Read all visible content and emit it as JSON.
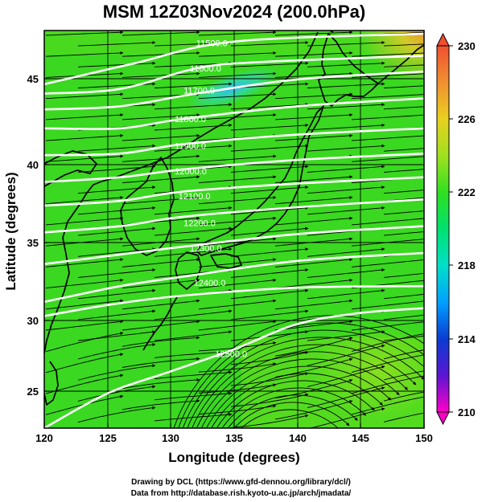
{
  "title": "MSM 12Z03Nov2024 (200.0hPa)",
  "xlabel": "Longitude (degrees)",
  "ylabel": "Latitude  (degrees)",
  "credits": {
    "line1": "Drawing by DCL (https://www.gfd-dennou.org/library/dcl/)",
    "line2": "Data from http://database.rish.kyoto-u.ac.jp/arch/jmadata/"
  },
  "chart_data": {
    "type": "map",
    "x_range": [
      120,
      150
    ],
    "y_range": [
      22.4,
      47.6
    ],
    "x_ticks": [
      120,
      125,
      130,
      135,
      140,
      145,
      150
    ],
    "y_ticks": [
      25,
      30,
      35,
      40,
      45
    ],
    "grid": true,
    "field": "temperature (shaded), geopotential height (white contours), wind (streamlines)",
    "colorbar": {
      "min": 210,
      "max": 230,
      "ticks": [
        230,
        226,
        222,
        218,
        214,
        210
      ],
      "colors": [
        "#ff00c8",
        "#5a16d2",
        "#0a3cd2",
        "#00a0ff",
        "#00e0c8",
        "#00e070",
        "#30e020",
        "#a0e020",
        "#e8d020",
        "#f09030",
        "#f05030"
      ]
    },
    "contours": [
      {
        "label": "11500.0",
        "lat_at_lon": [
          [
            120,
            44.2
          ],
          [
            127,
            45.5
          ],
          [
            135,
            46.9
          ],
          [
            150,
            47.4
          ]
        ]
      },
      {
        "label": "11600.0",
        "lat_at_lon": [
          [
            120,
            43.6
          ],
          [
            126,
            43.9
          ],
          [
            132,
            45.2
          ],
          [
            137,
            45.6
          ],
          [
            150,
            46.0
          ]
        ]
      },
      {
        "label": "11700.0",
        "lat_at_lon": [
          [
            120,
            42.6
          ],
          [
            126,
            42.8
          ],
          [
            132,
            43.6
          ],
          [
            140,
            44.5
          ],
          [
            150,
            45.0
          ]
        ]
      },
      {
        "label": "11800.0",
        "lat_at_lon": [
          [
            120,
            41.4
          ],
          [
            126,
            41.4
          ],
          [
            131,
            42.0
          ],
          [
            140,
            42.8
          ],
          [
            150,
            43.3
          ]
        ]
      },
      {
        "label": "11900.0",
        "lat_at_lon": [
          [
            120,
            39.7
          ],
          [
            126,
            39.8
          ],
          [
            131,
            40.4
          ],
          [
            140,
            41.0
          ],
          [
            150,
            41.4
          ]
        ]
      },
      {
        "label": "12000.0",
        "lat_at_lon": [
          [
            120,
            38.0
          ],
          [
            126,
            38.3
          ],
          [
            131,
            38.8
          ],
          [
            140,
            39.4
          ],
          [
            150,
            39.8
          ]
        ]
      },
      {
        "label": "12100.0",
        "lat_at_lon": [
          [
            120,
            36.5
          ],
          [
            126,
            36.8
          ],
          [
            131,
            37.4
          ],
          [
            140,
            37.9
          ],
          [
            150,
            38.3
          ]
        ]
      },
      {
        "label": "12200.0",
        "lat_at_lon": [
          [
            120,
            34.8
          ],
          [
            126,
            35.2
          ],
          [
            131,
            35.8
          ],
          [
            140,
            36.4
          ],
          [
            150,
            36.9
          ]
        ]
      },
      {
        "label": "12300.0",
        "lat_at_lon": [
          [
            120,
            32.8
          ],
          [
            126,
            33.4
          ],
          [
            131,
            33.9
          ],
          [
            140,
            34.7
          ],
          [
            150,
            35.2
          ]
        ]
      },
      {
        "label": "12400.0",
        "lat_at_lon": [
          [
            120,
            30.4
          ],
          [
            126,
            31.4
          ],
          [
            131,
            32.0
          ],
          [
            140,
            33.0
          ],
          [
            150,
            33.5
          ]
        ]
      },
      {
        "label": "",
        "lat_at_lon": [
          [
            120,
            29.5
          ],
          [
            125,
            30.2
          ],
          [
            131,
            30.8
          ],
          [
            140,
            31.3
          ],
          [
            150,
            31.4
          ]
        ]
      },
      {
        "label": "12500.0",
        "lat_at_lon": [
          [
            120,
            22.4
          ],
          [
            125,
            24.6
          ],
          [
            130,
            26.0
          ],
          [
            135,
            27.4
          ],
          [
            140,
            29.0
          ],
          [
            145,
            29.7
          ],
          [
            150,
            30.0
          ]
        ]
      }
    ],
    "contour_labels": [
      {
        "text": "11500.0",
        "lon": 132.0,
        "lat": 46.6
      },
      {
        "text": "11600.0",
        "lon": 131.5,
        "lat": 45.0
      },
      {
        "text": "11700.0",
        "lon": 131.0,
        "lat": 43.6
      },
      {
        "text": "11800.0",
        "lon": 130.3,
        "lat": 41.8
      },
      {
        "text": "11900.0",
        "lon": 130.3,
        "lat": 40.1
      },
      {
        "text": "12000.0",
        "lon": 130.3,
        "lat": 38.5
      },
      {
        "text": "12100.0",
        "lon": 130.6,
        "lat": 36.9
      },
      {
        "text": "12200.0",
        "lon": 131.0,
        "lat": 35.2
      },
      {
        "text": "12300.0",
        "lon": 131.5,
        "lat": 33.6
      },
      {
        "text": "12400.0",
        "lon": 131.8,
        "lat": 31.4
      },
      {
        "text": "12500.0",
        "lon": 133.5,
        "lat": 26.9
      }
    ]
  }
}
